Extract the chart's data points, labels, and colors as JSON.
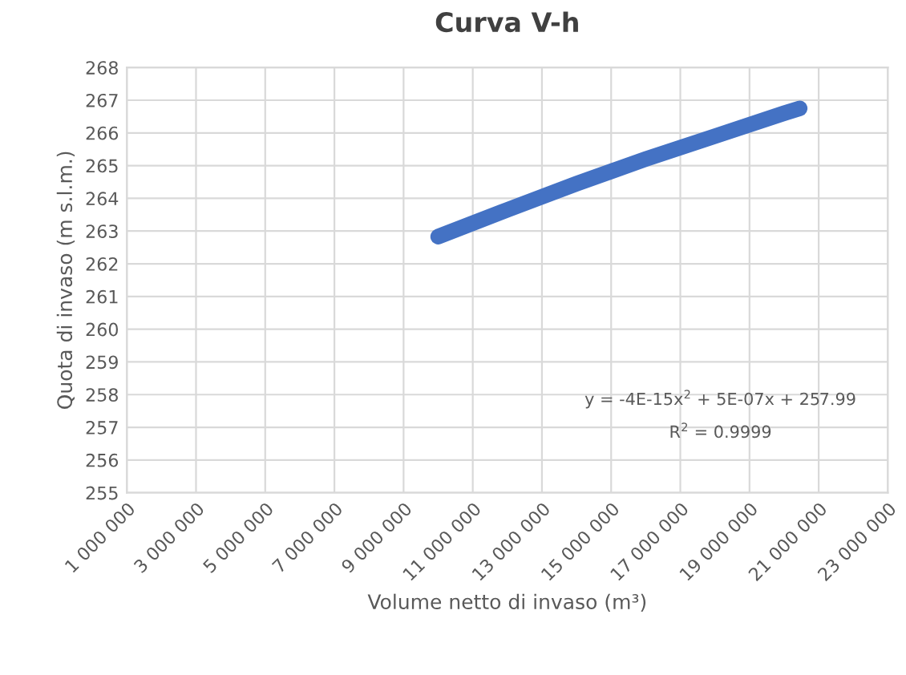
{
  "chart_data": {
    "type": "line",
    "title": "Curva V-h",
    "xlabel": "Volume netto di invaso (m³)",
    "ylabel": "Quota di invaso (m s.l.m.)",
    "x": [
      10000000,
      12000000,
      14000000,
      16000000,
      18000000,
      20000000,
      20450000
    ],
    "series": [
      {
        "color": "#4472c4",
        "values": [
          262.83,
          263.65,
          264.45,
          265.2,
          265.9,
          266.6,
          266.75
        ]
      }
    ],
    "xlim": [
      1000000,
      23000000
    ],
    "xticks": [
      {
        "value": 1000000,
        "label": "1 000 000"
      },
      {
        "value": 3000000,
        "label": "3 000 000"
      },
      {
        "value": 5000000,
        "label": "5 000 000"
      },
      {
        "value": 7000000,
        "label": "7 000 000"
      },
      {
        "value": 9000000,
        "label": "9 000 000"
      },
      {
        "value": 11000000,
        "label": "11 000 000"
      },
      {
        "value": 13000000,
        "label": "13 000 000"
      },
      {
        "value": 15000000,
        "label": "15 000 000"
      },
      {
        "value": 17000000,
        "label": "17 000 000"
      },
      {
        "value": 19000000,
        "label": "19 000 000"
      },
      {
        "value": 21000000,
        "label": "21 000 000"
      },
      {
        "value": 23000000,
        "label": "23 000 000"
      }
    ],
    "ylim": [
      255,
      268
    ],
    "yticks": [
      255,
      256,
      257,
      258,
      259,
      260,
      261,
      262,
      263,
      264,
      265,
      266,
      267,
      268
    ],
    "grid": true,
    "marker": "none",
    "line_style": "solid",
    "annotations": [
      "y = -4E-15x$^{2}$ + 5E-07x + 257.99",
      "R$^{2}$ = 0.9999"
    ]
  }
}
